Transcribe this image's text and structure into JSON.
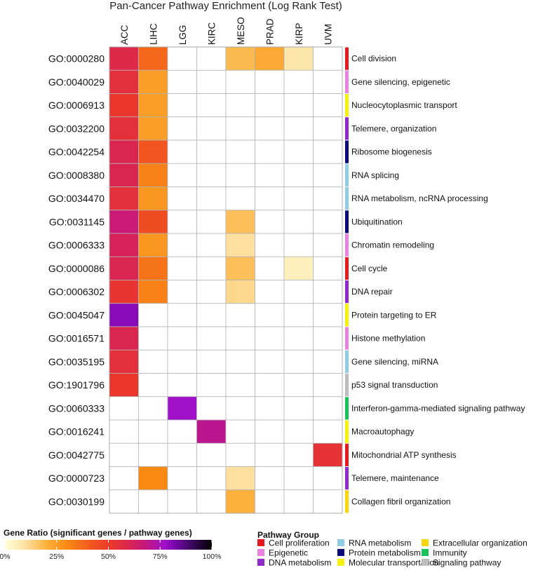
{
  "chart_data": {
    "type": "heatmap",
    "title": "Pan-Cancer Pathway Enrichment (Log Rank Test)",
    "columns": [
      "ACC",
      "LIHC",
      "LGG",
      "KIRC",
      "MESO",
      "PRAD",
      "KIRP",
      "UVM"
    ],
    "rows": [
      {
        "go": "GO:0000280",
        "description": "Cell division",
        "group": "Cell proliferation",
        "values": [
          0.58,
          0.38,
          null,
          null,
          0.18,
          0.22,
          0.08,
          null
        ]
      },
      {
        "go": "GO:0040029",
        "description": "Gene silencing, epigenetic",
        "group": "Epigenetic",
        "values": [
          0.55,
          0.25,
          null,
          null,
          null,
          null,
          null,
          null
        ]
      },
      {
        "go": "GO:0006913",
        "description": "Nucleocytoplasmic transport",
        "group": "Molecular transportation",
        "values": [
          0.52,
          0.25,
          null,
          null,
          null,
          null,
          null,
          null
        ]
      },
      {
        "go": "GO:0032200",
        "description": "Telemere, organization",
        "group": "DNA metabolism",
        "values": [
          0.55,
          0.25,
          null,
          null,
          null,
          null,
          null,
          null
        ]
      },
      {
        "go": "GO:0042254",
        "description": "Ribosome biogenesis",
        "group": "Protein metabolism",
        "values": [
          0.6,
          0.42,
          null,
          null,
          null,
          null,
          null,
          null
        ]
      },
      {
        "go": "GO:0008380",
        "description": "RNA splicing",
        "group": "RNA metabolism",
        "values": [
          0.6,
          0.32,
          null,
          null,
          null,
          null,
          null,
          null
        ]
      },
      {
        "go": "GO:0034470",
        "description": "RNA metabolism, ncRNA processing",
        "group": "RNA metabolism",
        "values": [
          0.55,
          0.27,
          null,
          null,
          null,
          null,
          null,
          null
        ]
      },
      {
        "go": "GO:0031145",
        "description": "Ubiquitination",
        "group": "Protein metabolism",
        "values": [
          0.66,
          0.45,
          null,
          null,
          0.17,
          null,
          null,
          null
        ]
      },
      {
        "go": "GO:0006333",
        "description": "Chromatin remodeling",
        "group": "Epigenetic",
        "values": [
          0.62,
          0.27,
          null,
          null,
          0.1,
          null,
          null,
          null
        ]
      },
      {
        "go": "GO:0000086",
        "description": "Cell cycle",
        "group": "Cell proliferation",
        "values": [
          0.6,
          0.35,
          null,
          null,
          0.17,
          null,
          0.05,
          null
        ]
      },
      {
        "go": "GO:0006302",
        "description": "DNA repair",
        "group": "DNA metabolism",
        "values": [
          0.53,
          0.32,
          null,
          null,
          0.12,
          null,
          null,
          null
        ]
      },
      {
        "go": "GO:0045047",
        "description": "Protein targeting to ER",
        "group": "Molecular transportation",
        "values": [
          0.8,
          null,
          null,
          null,
          null,
          null,
          null,
          null
        ]
      },
      {
        "go": "GO:0016571",
        "description": "Histone methylation",
        "group": "Epigenetic",
        "values": [
          0.6,
          null,
          null,
          null,
          null,
          null,
          null,
          null
        ]
      },
      {
        "go": "GO:0035195",
        "description": "Gene silencing, miRNA",
        "group": "RNA metabolism",
        "values": [
          0.55,
          null,
          null,
          null,
          null,
          null,
          null,
          null
        ]
      },
      {
        "go": "GO:1901796",
        "description": "p53 signal transduction",
        "group": "Signaling pathway",
        "values": [
          0.52,
          null,
          null,
          null,
          null,
          null,
          null,
          null
        ]
      },
      {
        "go": "GO:0060333",
        "description": "Interferon-gamma-mediated signaling pathway",
        "group": "Immunity",
        "values": [
          null,
          null,
          0.77,
          null,
          null,
          null,
          null,
          null
        ]
      },
      {
        "go": "GO:0016241",
        "description": "Macroautophagy",
        "group": "Molecular transportation",
        "values": [
          null,
          null,
          null,
          0.7,
          null,
          null,
          null,
          null
        ]
      },
      {
        "go": "GO:0042775",
        "description": "Mitochondrial ATP synthesis",
        "group": "Cell proliferation",
        "values": [
          null,
          null,
          null,
          null,
          null,
          null,
          null,
          0.54
        ]
      },
      {
        "go": "GO:0000723",
        "description": "Telemere, maintenance",
        "group": "DNA metabolism",
        "values": [
          null,
          0.3,
          null,
          null,
          0.1,
          null,
          null,
          null
        ]
      },
      {
        "go": "GO:0030199",
        "description": "Collagen fibril organization",
        "group": "Extracellular organization",
        "values": [
          null,
          null,
          null,
          null,
          0.2,
          null,
          null,
          null
        ]
      }
    ],
    "color_scale": {
      "title": "Gene Ratio (significant genes / pathway genes)",
      "range": [
        0,
        1
      ],
      "ticks": [
        "0%",
        "25%",
        "50%",
        "75%",
        "100%"
      ],
      "stops": [
        {
          "v": 0.0,
          "c": "#ffffd9"
        },
        {
          "v": 0.1,
          "c": "#fde0a0"
        },
        {
          "v": 0.2,
          "c": "#fbb13c"
        },
        {
          "v": 0.3,
          "c": "#f88a14"
        },
        {
          "v": 0.42,
          "c": "#f2551f"
        },
        {
          "v": 0.52,
          "c": "#ea362d"
        },
        {
          "v": 0.62,
          "c": "#d6215a"
        },
        {
          "v": 0.7,
          "c": "#bc158f"
        },
        {
          "v": 0.77,
          "c": "#a010c8"
        },
        {
          "v": 0.82,
          "c": "#7a07ac"
        },
        {
          "v": 0.9,
          "c": "#3c0860"
        },
        {
          "v": 1.0,
          "c": "#000000"
        }
      ]
    },
    "pathway_legend": {
      "title": "Pathway Group",
      "groups": [
        {
          "name": "Cell proliferation",
          "color": "#e8191e"
        },
        {
          "name": "Epigenetic",
          "color": "#ea82e0"
        },
        {
          "name": "DNA metabolism",
          "color": "#8f2bcb"
        },
        {
          "name": "RNA metabolism",
          "color": "#8ecde3"
        },
        {
          "name": "Protein metabolism",
          "color": "#0b0a7a"
        },
        {
          "name": "Molecular transportation",
          "color": "#f6f20c"
        },
        {
          "name": "Extracellular organization",
          "color": "#fbd50a"
        },
        {
          "name": "Immunity",
          "color": "#18c35a"
        },
        {
          "name": "Signaling pathway",
          "color": "#bdbdbd"
        }
      ]
    }
  }
}
